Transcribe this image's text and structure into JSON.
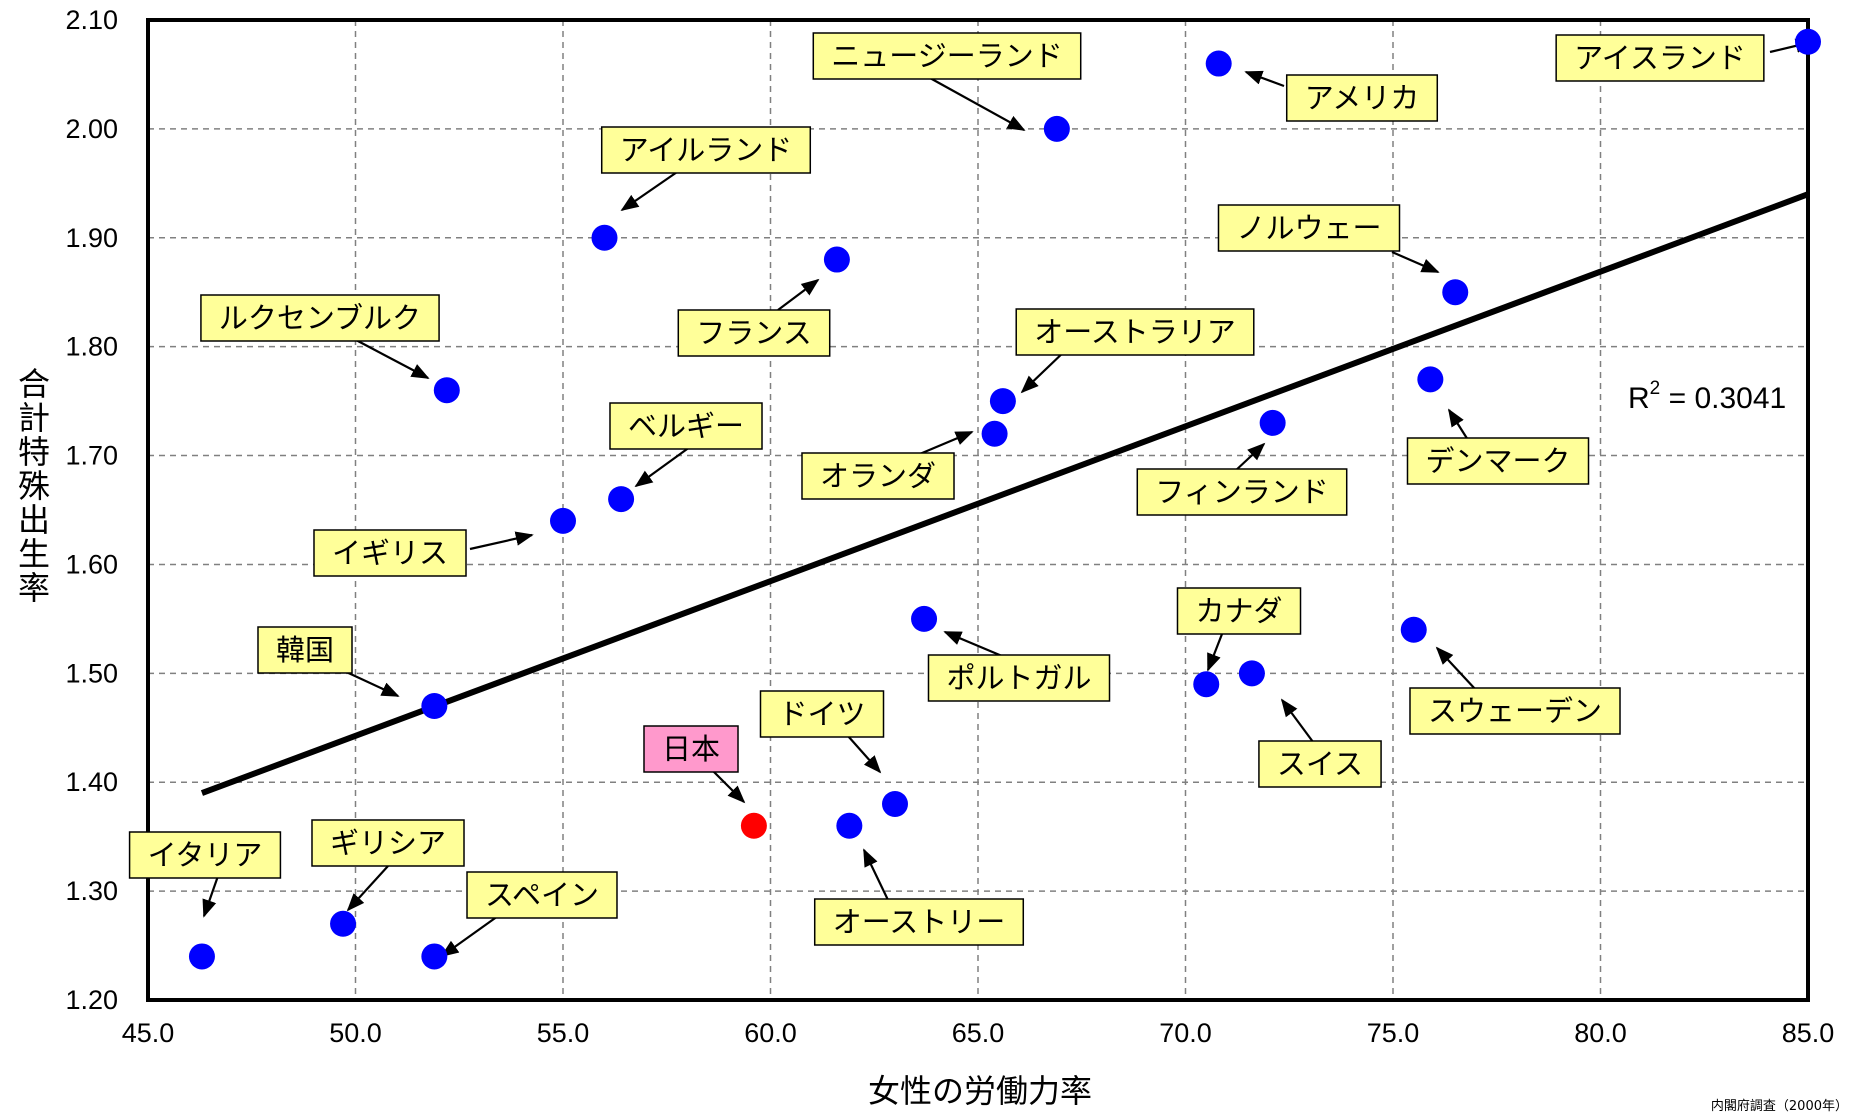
{
  "chart_data": {
    "type": "scatter",
    "title": "",
    "xlabel": "女性の労働力率",
    "ylabel": "合計特殊出生率",
    "xlim": [
      45.0,
      85.0
    ],
    "ylim": [
      1.2,
      2.1
    ],
    "x_ticks": [
      "45.0",
      "50.0",
      "55.0",
      "60.0",
      "65.0",
      "70.0",
      "75.0",
      "80.0",
      "85.0"
    ],
    "y_ticks": [
      "1.20",
      "1.30",
      "1.40",
      "1.50",
      "1.60",
      "1.70",
      "1.80",
      "1.90",
      "2.00",
      "2.10"
    ],
    "grid": true,
    "marker_color": "#0000ff",
    "highlight_color": "#ff0000",
    "label_box_color": "#ffff99",
    "highlight_box_color": "#ff99cc",
    "points": [
      {
        "label": "アイスランド",
        "x": 85.0,
        "y": 2.08
      },
      {
        "label": "アメリカ",
        "x": 70.8,
        "y": 2.06
      },
      {
        "label": "ニュージーランド",
        "x": 66.9,
        "y": 2.0
      },
      {
        "label": "アイルランド",
        "x": 56.0,
        "y": 1.9
      },
      {
        "label": "フランス",
        "x": 61.6,
        "y": 1.88
      },
      {
        "label": "ノルウェー",
        "x": 76.5,
        "y": 1.85
      },
      {
        "label": "ルクセンブルク",
        "x": 52.2,
        "y": 1.76
      },
      {
        "label": "オーストラリア",
        "x": 65.6,
        "y": 1.75
      },
      {
        "label": "デンマーク",
        "x": 75.9,
        "y": 1.77
      },
      {
        "label": "オランダ",
        "x": 65.4,
        "y": 1.72
      },
      {
        "label": "フィンランド",
        "x": 72.1,
        "y": 1.73
      },
      {
        "label": "ベルギー",
        "x": 56.4,
        "y": 1.66
      },
      {
        "label": "イギリス",
        "x": 55.0,
        "y": 1.64
      },
      {
        "label": "ポルトガル",
        "x": 63.7,
        "y": 1.55
      },
      {
        "label": "スウェーデン",
        "x": 75.5,
        "y": 1.54
      },
      {
        "label": "韓国",
        "x": 51.9,
        "y": 1.47
      },
      {
        "label": "カナダ",
        "x": 70.5,
        "y": 1.49
      },
      {
        "label": "スイス",
        "x": 71.6,
        "y": 1.5
      },
      {
        "label": "ドイツ",
        "x": 63.0,
        "y": 1.38
      },
      {
        "label": "日本",
        "x": 59.6,
        "y": 1.36,
        "highlight": true
      },
      {
        "label": "オーストリー",
        "x": 61.9,
        "y": 1.36
      },
      {
        "label": "イタリア",
        "x": 46.3,
        "y": 1.24
      },
      {
        "label": "ギリシア",
        "x": 49.7,
        "y": 1.27
      },
      {
        "label": "スペイン",
        "x": 51.9,
        "y": 1.24
      }
    ],
    "trendline": {
      "type": "linear",
      "x_start": 46.3,
      "y_start": 1.39,
      "x_end": 85.0,
      "y_end": 1.94
    },
    "r2_label": "R",
    "r2_sup": "2",
    "r2_value": " = 0.3041",
    "source": "内閣府調査（2000年）"
  }
}
